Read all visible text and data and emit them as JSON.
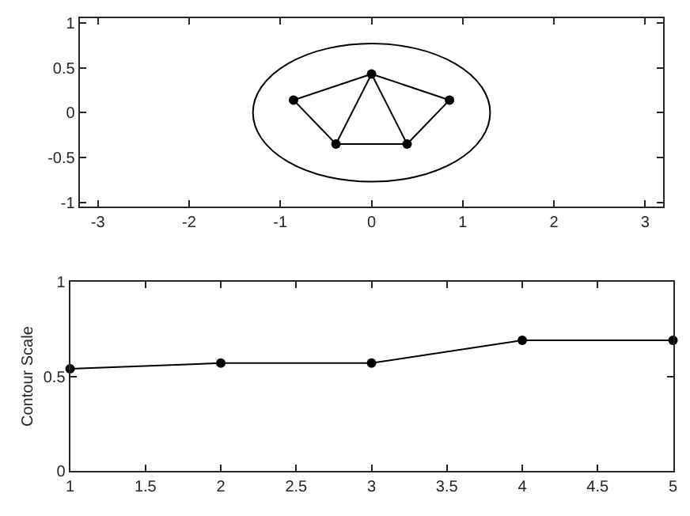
{
  "chart_data": [
    {
      "type": "line",
      "xlim": [
        -3.2,
        3.2
      ],
      "ylim": [
        -1.05,
        1.05
      ],
      "xticks": [
        -3,
        -2,
        -1,
        0,
        1,
        2,
        3
      ],
      "yticks": [
        -1,
        -0.5,
        0,
        0.5,
        1
      ],
      "series": [
        {
          "type": "line",
          "color": "#000000",
          "marker": "none",
          "x": [
            -0.855,
            0
          ],
          "values": [
            0.14,
            0.43
          ]
        },
        {
          "type": "line",
          "color": "#000000",
          "marker": "none",
          "x": [
            0,
            0.855
          ],
          "values": [
            0.43,
            0.14
          ]
        },
        {
          "type": "line",
          "color": "#000000",
          "marker": "none",
          "x": [
            0.39,
            0.855
          ],
          "values": [
            -0.35,
            0.14
          ]
        },
        {
          "type": "line",
          "color": "#000000",
          "marker": "none",
          "x": [
            -0.39,
            0.39
          ],
          "values": [
            -0.35,
            -0.35
          ]
        },
        {
          "type": "line",
          "color": "#000000",
          "marker": "none",
          "x": [
            -0.855,
            -0.39
          ],
          "values": [
            0.14,
            -0.35
          ]
        },
        {
          "type": "line",
          "color": "#000000",
          "marker": "none",
          "x": [
            -0.39,
            0
          ],
          "values": [
            -0.35,
            0.43
          ]
        },
        {
          "type": "line",
          "color": "#000000",
          "marker": "none",
          "x": [
            0,
            0.39
          ],
          "values": [
            0.43,
            -0.35
          ]
        },
        {
          "type": "scatter",
          "color": "#000000",
          "marker": "circle",
          "x": [
            -0.855,
            -0.39,
            0,
            0.39,
            0.855
          ],
          "values": [
            0.14,
            -0.35,
            0.43,
            -0.35,
            0.14
          ]
        }
      ]
    },
    {
      "type": "line",
      "xlim": [
        1,
        5
      ],
      "ylim": [
        0,
        1
      ],
      "xticks": [
        1,
        1.5,
        2,
        2.5,
        3,
        3.5,
        4,
        4.5,
        5
      ],
      "yticks": [
        0,
        0.5,
        1
      ],
      "ylabel": "Contour Scale",
      "marker": "circle",
      "x": [
        1,
        2,
        3,
        4,
        5
      ],
      "series": [
        {
          "color": "#000000",
          "values": [
            0.54,
            0.57,
            0.57,
            0.69,
            0.69
          ]
        }
      ]
    }
  ]
}
